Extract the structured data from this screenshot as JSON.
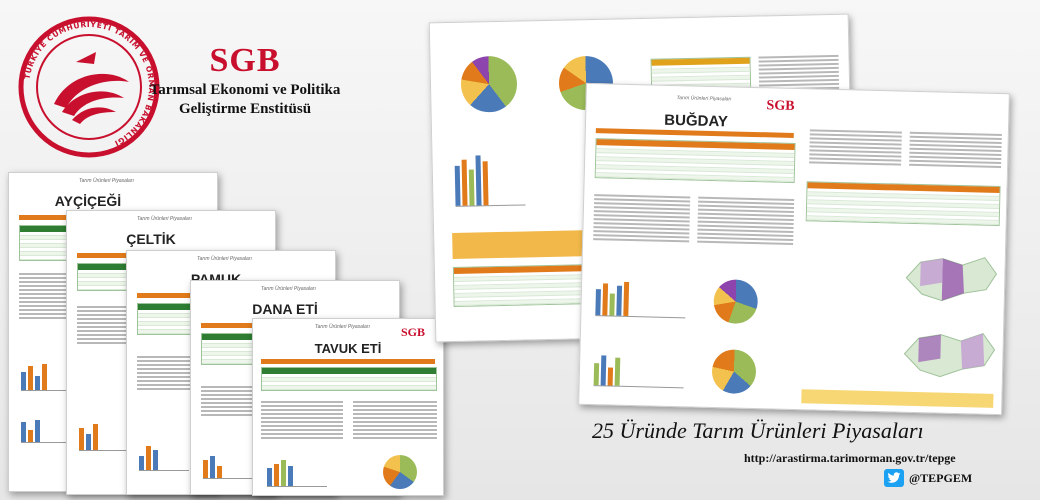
{
  "logo": {
    "seal_ring_text": "TÜRKİYE CUMHURİYETİ TARIM VE ORMAN BAKANLIĞI",
    "abbr": "SGB",
    "line1": "Tarımsal Ekonomi ve Politika",
    "line2": "Geliştirme Enstitüsü"
  },
  "colors": {
    "brand_red": "#c8102e",
    "table_green": "#2e7d32",
    "accent_orange": "#e07a1a",
    "twitter_blue": "#1da1f2"
  },
  "publications": [
    {
      "title": "AYÇİÇEĞİ",
      "header": "Tarım Ürünleri Piyasaları"
    },
    {
      "title": "ÇELTİK",
      "header": "Tarım Ürünleri Piyasaları"
    },
    {
      "title": "PAMUK",
      "header": "Tarım Ürünleri Piyasaları"
    },
    {
      "title": "DANA ETİ",
      "header": "Tarım Ürünleri Piyasaları"
    },
    {
      "title": "TAVUK ETİ",
      "header": "Tarım Ürünleri Piyasaları"
    },
    {
      "title": "BUĞDAY",
      "header": "Tarım Ürünleri Piyasaları",
      "badge": "SGB"
    }
  ],
  "tagline": "25 Üründe Tarım Ürünleri Piyasaları",
  "url": "http://arastirma.tarimorman.gov.tr/tepge",
  "social": {
    "icon": "twitter-icon",
    "handle": "@TEPGEM"
  }
}
